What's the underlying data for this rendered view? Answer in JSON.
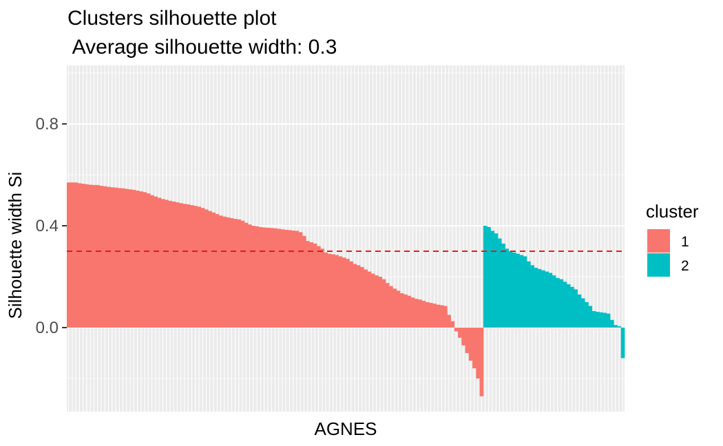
{
  "chart_data": {
    "type": "bar",
    "title": "Clusters silhouette plot",
    "subtitle": " Average silhouette width: 0.3",
    "xlabel": "AGNES",
    "ylabel": "Silhouette width Si",
    "ylim": [
      -0.33,
      1.03
    ],
    "yticks": [
      0.0,
      0.4,
      0.8
    ],
    "ytick_labels": [
      "0.0",
      "0.4",
      "0.8"
    ],
    "grid": true,
    "average_line": {
      "value": 0.3,
      "color": "#e41a1c",
      "style": "dashed"
    },
    "legend": {
      "title": "cluster",
      "placement": "right",
      "entries": [
        {
          "label": "1",
          "color": "#F8766D"
        },
        {
          "label": "2",
          "color": "#00BFC4"
        }
      ]
    },
    "series": [
      {
        "cluster": "1",
        "color": "#F8766D",
        "values": [
          0.57,
          0.57,
          0.57,
          0.567,
          0.565,
          0.563,
          0.561,
          0.56,
          0.56,
          0.557,
          0.555,
          0.553,
          0.551,
          0.55,
          0.548,
          0.547,
          0.545,
          0.543,
          0.541,
          0.538,
          0.535,
          0.532,
          0.527,
          0.52,
          0.515,
          0.51,
          0.505,
          0.502,
          0.498,
          0.495,
          0.492,
          0.489,
          0.486,
          0.484,
          0.481,
          0.478,
          0.475,
          0.47,
          0.464,
          0.458,
          0.452,
          0.446,
          0.44,
          0.436,
          0.433,
          0.43,
          0.427,
          0.425,
          0.42,
          0.412,
          0.405,
          0.4,
          0.398,
          0.395,
          0.393,
          0.392,
          0.391,
          0.39,
          0.388,
          0.386,
          0.384,
          0.383,
          0.381,
          0.38,
          0.375,
          0.36,
          0.34,
          0.335,
          0.33,
          0.32,
          0.31,
          0.295,
          0.29,
          0.288,
          0.285,
          0.28,
          0.275,
          0.27,
          0.26,
          0.25,
          0.245,
          0.238,
          0.228,
          0.22,
          0.212,
          0.205,
          0.2,
          0.19,
          0.175,
          0.163,
          0.153,
          0.145,
          0.135,
          0.13,
          0.125,
          0.118,
          0.113,
          0.11,
          0.105,
          0.1,
          0.097,
          0.094,
          0.09,
          0.088,
          0.085,
          0.05,
          0.025,
          -0.015,
          -0.04,
          -0.07,
          -0.1,
          -0.13,
          -0.16,
          -0.2,
          -0.27
        ]
      },
      {
        "cluster": "2",
        "color": "#00BFC4",
        "values": [
          0.4,
          0.395,
          0.38,
          0.37,
          0.35,
          0.33,
          0.31,
          0.3,
          0.295,
          0.29,
          0.285,
          0.28,
          0.26,
          0.245,
          0.235,
          0.23,
          0.225,
          0.22,
          0.215,
          0.205,
          0.195,
          0.19,
          0.18,
          0.17,
          0.16,
          0.15,
          0.13,
          0.115,
          0.1,
          0.085,
          0.065,
          0.062,
          0.06,
          0.058,
          0.055,
          0.03,
          0.01,
          0.005,
          -0.12
        ]
      }
    ]
  }
}
